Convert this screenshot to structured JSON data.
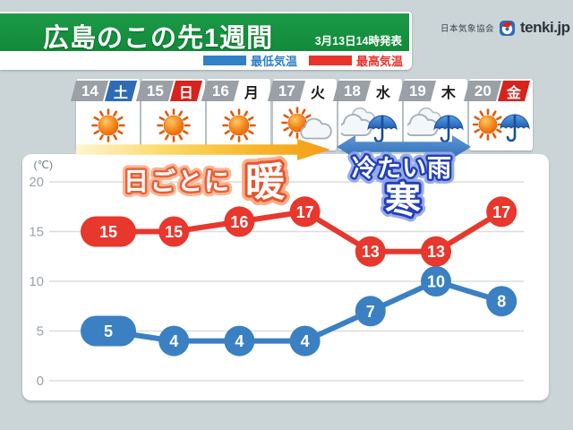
{
  "header": {
    "title": "広島のこの先1週間",
    "issued": "3月13日14時発表",
    "publisher": "日本気象協会",
    "brand": "tenki.jp"
  },
  "legend": {
    "min_label": "最低気温",
    "max_label": "最高気温",
    "min_color": "#3181c6",
    "max_color": "#e8332a"
  },
  "annotations": {
    "warm_prefix": "日ごとに",
    "warm_char": "暖",
    "cold_rain": "冷たい雨",
    "cold_char": "寒"
  },
  "days": [
    {
      "date": "14",
      "weekday": "土",
      "weekday_type": "saturday",
      "icon": "sunny"
    },
    {
      "date": "15",
      "weekday": "日",
      "weekday_type": "sunday",
      "icon": "sunny"
    },
    {
      "date": "16",
      "weekday": "月",
      "weekday_type": "weekday",
      "icon": "sunny"
    },
    {
      "date": "17",
      "weekday": "火",
      "weekday_type": "weekday",
      "icon": "sunny-then-cloudy"
    },
    {
      "date": "18",
      "weekday": "水",
      "weekday_type": "weekday",
      "icon": "cloudy-rain"
    },
    {
      "date": "19",
      "weekday": "木",
      "weekday_type": "weekday",
      "icon": "cloudy-rain"
    },
    {
      "date": "20",
      "weekday": "金",
      "weekday_type": "holiday",
      "icon": "sunny-rain"
    }
  ],
  "chart_data": {
    "type": "line",
    "x_categories": [
      "3/14 土",
      "3/15 日",
      "3/16 月",
      "3/17 火",
      "3/18 水",
      "3/19 木",
      "3/20 金"
    ],
    "series": [
      {
        "name": "最高気温",
        "color": "#e8372c",
        "values": [
          15,
          15,
          16,
          17,
          13,
          13,
          17
        ]
      },
      {
        "name": "最低気温",
        "color": "#3a80c2",
        "values": [
          5,
          4,
          4,
          4,
          7,
          10,
          8
        ]
      }
    ],
    "unit_label": "(℃)",
    "yticks": [
      0,
      5,
      10,
      15,
      20
    ],
    "ylim": [
      0,
      22
    ],
    "grid": true,
    "legend_position": "top-right"
  },
  "colors": {
    "header_green": "#128a3a",
    "background": "#cbd5d8",
    "date_box_gray": "#9aa0a6",
    "saturday_blue": "#2e6db4",
    "sunday_holiday_red": "#d7231d",
    "warm_arrow_end": "#f59d14",
    "cold_arrow_blue": "#3e7ec5",
    "warm_text_outline": "#e8603a",
    "cold_text_outline": "#2440b8"
  }
}
